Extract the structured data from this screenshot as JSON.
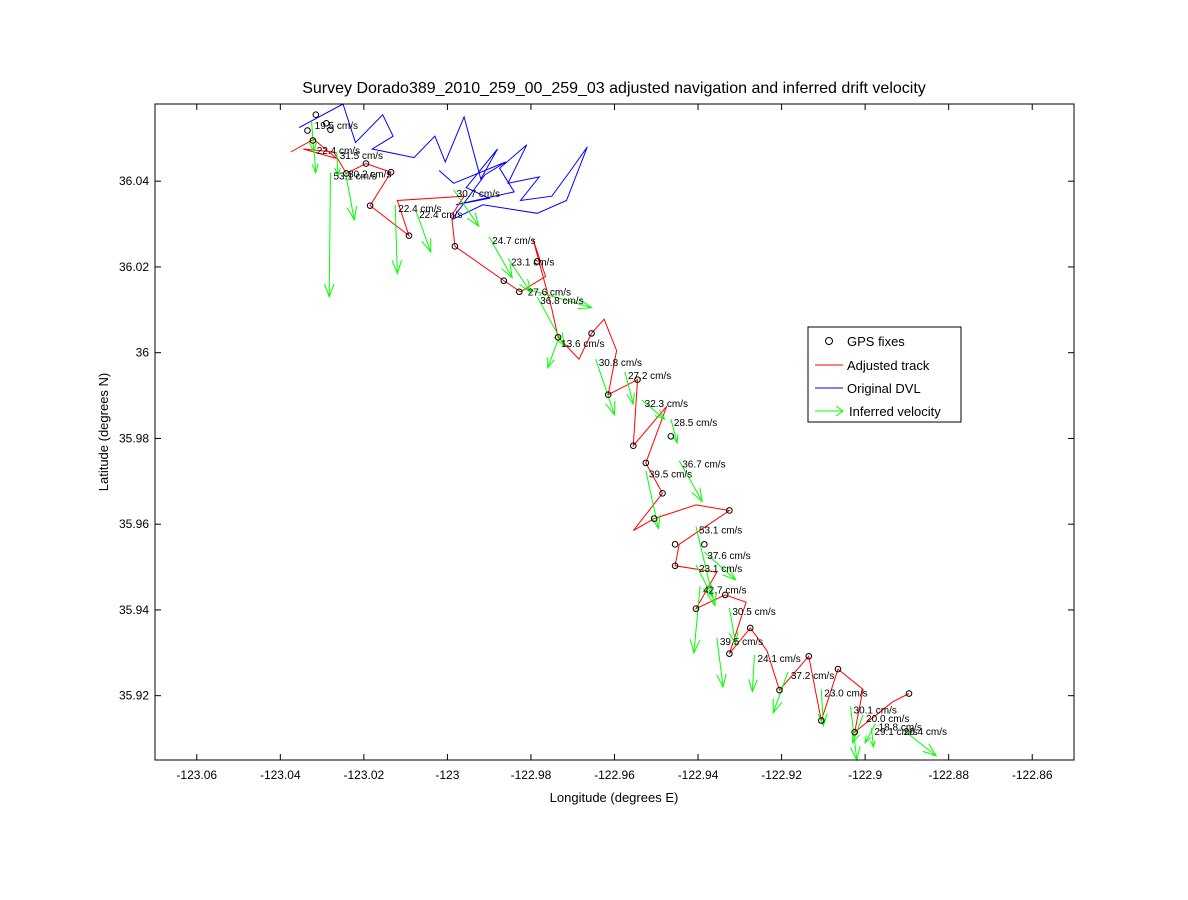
{
  "chart_data": {
    "type": "scatter",
    "title": "Survey Dorado389_2010_259_00_259_03 adjusted navigation and inferred drift velocity",
    "xlabel": "Longitude (degrees E)",
    "ylabel": "Latitude (degrees N)",
    "xlim": [
      -123.07,
      -122.85
    ],
    "ylim": [
      35.905,
      36.058
    ],
    "xticks": [
      "-123.06",
      "-123.04",
      "-123.02",
      "-123",
      "-122.98",
      "-122.96",
      "-122.94",
      "-122.92",
      "-122.9",
      "-122.88",
      "-122.86"
    ],
    "yticks": [
      "35.92",
      "35.94",
      "35.96",
      "35.98",
      "36",
      "36.02",
      "36.04"
    ],
    "legend": {
      "position": "right",
      "entries": [
        {
          "label": "GPS fixes",
          "color": "#000000",
          "marker": "circle"
        },
        {
          "label": "Adjusted track",
          "color": "#ff0000",
          "marker": "line"
        },
        {
          "label": "Original DVL",
          "color": "#0000ff",
          "marker": "line"
        },
        {
          "label": "Inferred velocity",
          "color": "#00ff00",
          "marker": "arrow"
        }
      ]
    },
    "colors": {
      "gps": "#000000",
      "adjusted": "#ff0000",
      "dvl": "#0000ff",
      "velocity": "#00ff00"
    },
    "gps_fixes": [
      [
        -123.0315,
        36.0555
      ],
      [
        -123.029,
        36.0535
      ],
      [
        -123.028,
        36.052
      ],
      [
        -123.0335,
        36.0518
      ],
      [
        -123.0322,
        36.0495
      ],
      [
        -123.0242,
        36.0418
      ],
      [
        -123.0195,
        36.0441
      ],
      [
        -123.0135,
        36.0421
      ],
      [
        -123.0185,
        36.0343
      ],
      [
        -123.0092,
        36.0273
      ],
      [
        -122.9982,
        36.0248
      ],
      [
        -122.9865,
        36.0168
      ],
      [
        -122.9828,
        36.0142
      ],
      [
        -122.9785,
        36.0213
      ],
      [
        -122.9735,
        36.0036
      ],
      [
        -122.9655,
        36.0045
      ],
      [
        -122.9615,
        35.9902
      ],
      [
        -122.9545,
        35.9937
      ],
      [
        -122.9555,
        35.9783
      ],
      [
        -122.9525,
        35.9743
      ],
      [
        -122.9505,
        35.9613
      ],
      [
        -122.9485,
        35.9672
      ],
      [
        -122.9455,
        35.9553
      ],
      [
        -122.9455,
        35.9503
      ],
      [
        -122.9405,
        35.9403
      ],
      [
        -122.9385,
        35.9553
      ],
      [
        -122.9325,
        35.9632
      ],
      [
        -122.9335,
        35.9435
      ],
      [
        -122.9325,
        35.9298
      ],
      [
        -122.9275,
        35.9358
      ],
      [
        -122.9205,
        35.9213
      ],
      [
        -122.9135,
        35.9292
      ],
      [
        -122.9105,
        35.9142
      ],
      [
        -122.9065,
        35.9262
      ],
      [
        -122.9025,
        35.9115
      ],
      [
        -122.8895,
        35.9205
      ],
      [
        -122.9465,
        35.9805
      ]
    ],
    "adjusted_track": [
      [
        -123.0375,
        36.0468
      ],
      [
        -123.032,
        36.0498
      ],
      [
        -123.0265,
        36.0453
      ],
      [
        -123.0345,
        36.0475
      ],
      [
        -123.0272,
        36.0468
      ],
      [
        -123.0242,
        36.0418
      ],
      [
        -123.0195,
        36.0441
      ],
      [
        -123.0135,
        36.0421
      ],
      [
        -123.0185,
        36.0343
      ],
      [
        -123.0092,
        36.0273
      ],
      [
        -123.012,
        36.0355
      ],
      [
        -122.996,
        36.0365
      ],
      [
        -122.999,
        36.032
      ],
      [
        -122.9982,
        36.0248
      ],
      [
        -122.9865,
        36.0168
      ],
      [
        -122.9825,
        36.0142
      ],
      [
        -122.9765,
        36.0178
      ],
      [
        -122.9795,
        36.0265
      ],
      [
        -122.975,
        36.0102
      ],
      [
        -122.9735,
        36.0036
      ],
      [
        -122.9685,
        35.9985
      ],
      [
        -122.9655,
        36.0045
      ],
      [
        -122.9625,
        36.0078
      ],
      [
        -122.9595,
        36.0005
      ],
      [
        -122.9615,
        35.9902
      ],
      [
        -122.9545,
        35.9937
      ],
      [
        -122.9555,
        35.9783
      ],
      [
        -122.9475,
        35.9875
      ],
      [
        -122.9525,
        35.9743
      ],
      [
        -122.9485,
        35.9672
      ],
      [
        -122.9555,
        35.9585
      ],
      [
        -122.9505,
        35.9613
      ],
      [
        -122.9405,
        35.9645
      ],
      [
        -122.9325,
        35.9632
      ],
      [
        -122.9445,
        35.9553
      ],
      [
        -122.9455,
        35.9503
      ],
      [
        -122.9355,
        35.9488
      ],
      [
        -122.9405,
        35.9403
      ],
      [
        -122.9335,
        35.9435
      ],
      [
        -122.9285,
        35.9418
      ],
      [
        -122.9325,
        35.9298
      ],
      [
        -122.9275,
        35.9358
      ],
      [
        -122.9235,
        35.9305
      ],
      [
        -122.9205,
        35.9213
      ],
      [
        -122.9135,
        35.9292
      ],
      [
        -122.9105,
        35.9142
      ],
      [
        -122.9065,
        35.9262
      ],
      [
        -122.9005,
        35.9215
      ],
      [
        -122.9025,
        35.9115
      ],
      [
        -122.8935,
        35.9185
      ],
      [
        -122.8895,
        35.9205
      ]
    ],
    "original_dvl": [
      [
        -123.0355,
        36.0525
      ],
      [
        -123.025,
        36.058
      ],
      [
        -123.022,
        36.049
      ],
      [
        -123.0155,
        36.0555
      ],
      [
        -123.013,
        36.0505
      ],
      [
        -123.018,
        36.0475
      ],
      [
        -123.008,
        36.0455
      ],
      [
        -123.003,
        36.0505
      ],
      [
        -123.0005,
        36.0445
      ],
      [
        -122.996,
        36.055
      ],
      [
        -122.992,
        36.0405
      ],
      [
        -122.988,
        36.0475
      ],
      [
        -122.9955,
        36.0385
      ],
      [
        -122.99,
        36.036
      ],
      [
        -122.998,
        36.0345
      ],
      [
        -122.984,
        36.0375
      ],
      [
        -122.9875,
        36.043
      ],
      [
        -122.981,
        36.0485
      ],
      [
        -122.9855,
        36.0395
      ],
      [
        -122.978,
        36.041
      ],
      [
        -122.9825,
        36.0355
      ],
      [
        -122.975,
        36.0365
      ],
      [
        -122.9705,
        36.0425
      ],
      [
        -122.9665,
        36.048
      ],
      [
        -122.9715,
        36.0355
      ],
      [
        -122.9785,
        36.0325
      ],
      [
        -122.9915,
        36.0345
      ],
      [
        -122.999,
        36.031
      ],
      [
        -122.991,
        36.0415
      ],
      [
        -122.986,
        36.0445
      ],
      [
        -122.9985,
        36.0395
      ],
      [
        -123.002,
        36.0425
      ]
    ],
    "velocities": [
      {
        "lon": -123.0325,
        "lat": 36.0538,
        "dlon": 0.0005,
        "dlat": -0.007,
        "label": "19.5 cm/s"
      },
      {
        "lon": -123.032,
        "lat": 36.048,
        "dlon": 0.0005,
        "dlat": -0.006,
        "label": "22.4 cm/s"
      },
      {
        "lon": -123.0265,
        "lat": 36.0468,
        "dlon": 0.0003,
        "dlat": -0.0055,
        "label": "31.5 cm/s"
      },
      {
        "lon": -123.028,
        "lat": 36.042,
        "dlon": -0.0003,
        "dlat": -0.029,
        "label": "53.1 cm/s"
      },
      {
        "lon": -123.0245,
        "lat": 36.0425,
        "dlon": 0.0022,
        "dlat": -0.0115,
        "label": "30.2 cm/s"
      },
      {
        "lon": -123.0125,
        "lat": 36.0345,
        "dlon": 0.0005,
        "dlat": -0.016,
        "label": "22.4 cm/s"
      },
      {
        "lon": -123.0075,
        "lat": 36.033,
        "dlon": 0.0035,
        "dlat": -0.0095,
        "label": "22.4 cm/s"
      },
      {
        "lon": -122.9985,
        "lat": 36.038,
        "dlon": 0.006,
        "dlat": -0.0085,
        "label": "30.7 cm/s"
      },
      {
        "lon": -122.99,
        "lat": 36.027,
        "dlon": 0.0055,
        "dlat": -0.0095,
        "label": "24.7 cm/s"
      },
      {
        "lon": -122.9855,
        "lat": 36.022,
        "dlon": 0.0055,
        "dlat": -0.008,
        "label": "23.1 cm/s"
      },
      {
        "lon": -122.9815,
        "lat": 36.015,
        "dlon": 0.016,
        "dlat": -0.0045,
        "label": "27.6 cm/s"
      },
      {
        "lon": -122.9785,
        "lat": 36.013,
        "dlon": 0.0065,
        "dlat": -0.0115,
        "label": "36.8 cm/s"
      },
      {
        "lon": -122.9735,
        "lat": 36.003,
        "dlon": -0.0025,
        "dlat": -0.0065,
        "label": "13.6 cm/s"
      },
      {
        "lon": -122.9645,
        "lat": 35.9985,
        "dlon": 0.0045,
        "dlat": -0.013,
        "label": "30.8 cm/s"
      },
      {
        "lon": -122.9575,
        "lat": 35.9955,
        "dlon": 0.002,
        "dlat": -0.0075,
        "label": "27.2 cm/s"
      },
      {
        "lon": -122.9535,
        "lat": 35.989,
        "dlon": 0.0055,
        "dlat": -0.0045,
        "label": "32.3 cm/s"
      },
      {
        "lon": -122.9465,
        "lat": 35.9845,
        "dlon": 0.0015,
        "dlat": -0.0055,
        "label": "28.5 cm/s"
      },
      {
        "lon": -122.9525,
        "lat": 35.9725,
        "dlon": 0.003,
        "dlat": -0.0135,
        "label": "39.5 cm/s"
      },
      {
        "lon": -122.9445,
        "lat": 35.9748,
        "dlon": 0.0055,
        "dlat": -0.0095,
        "label": "36.7 cm/s"
      },
      {
        "lon": -122.9405,
        "lat": 35.9595,
        "dlon": 0.0045,
        "dlat": -0.0185,
        "label": "53.1 cm/s"
      },
      {
        "lon": -122.9385,
        "lat": 35.9535,
        "dlon": 0.0075,
        "dlat": -0.0065,
        "label": "37.6 cm/s"
      },
      {
        "lon": -122.9405,
        "lat": 35.9505,
        "dlon": 0.004,
        "dlat": -0.0075,
        "label": "23.1 cm/s"
      },
      {
        "lon": -122.9395,
        "lat": 35.9455,
        "dlon": -0.0015,
        "dlat": -0.0155,
        "label": "42.7 cm/s"
      },
      {
        "lon": -122.9325,
        "lat": 35.9405,
        "dlon": 0.0015,
        "dlat": -0.0085,
        "label": "30.5 cm/s"
      },
      {
        "lon": -122.9355,
        "lat": 35.9335,
        "dlon": 0.0015,
        "dlat": -0.0115,
        "label": "39.5 cm/s"
      },
      {
        "lon": -122.9265,
        "lat": 35.9295,
        "dlon": -0.0005,
        "dlat": -0.0085,
        "label": "24.1 cm/s"
      },
      {
        "lon": -122.9185,
        "lat": 35.9255,
        "dlon": -0.0035,
        "dlat": -0.0095,
        "label": "37.2 cm/s"
      },
      {
        "lon": -122.9105,
        "lat": 35.9215,
        "dlon": 0.0005,
        "dlat": -0.0085,
        "label": "23.0 cm/s"
      },
      {
        "lon": -122.9035,
        "lat": 35.9175,
        "dlon": 0.0015,
        "dlat": -0.0125,
        "label": "30.1 cm/s"
      },
      {
        "lon": -122.9005,
        "lat": 35.9155,
        "dlon": -0.0025,
        "dlat": -0.0065,
        "label": "20.0 cm/s"
      },
      {
        "lon": -122.8985,
        "lat": 35.9125,
        "dlon": 0.0005,
        "dlat": -0.0045,
        "label": "29.1 cm/s"
      },
      {
        "lon": -122.8975,
        "lat": 35.9135,
        "dlon": -0.0025,
        "dlat": -0.0045,
        "label": "18.8 cm/s"
      },
      {
        "lon": -122.8915,
        "lat": 35.9125,
        "dlon": 0.0085,
        "dlat": -0.0065,
        "label": "26.4 cm/s"
      }
    ]
  }
}
